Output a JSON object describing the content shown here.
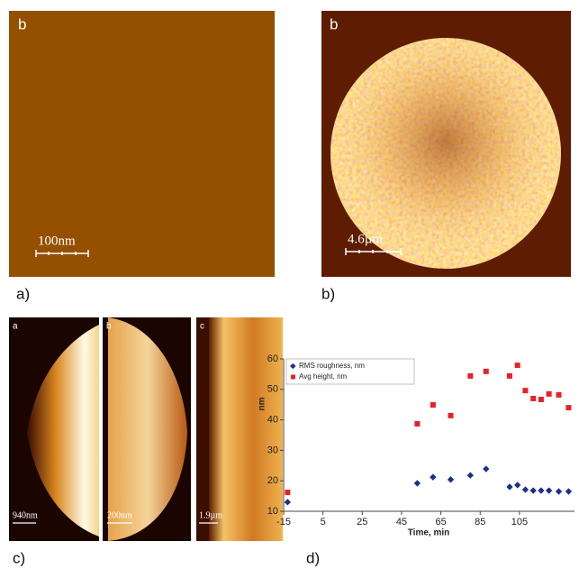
{
  "panels": [
    {
      "label": "a)",
      "inset_letter": "b",
      "scale_bar": "100nm"
    },
    {
      "label": "b)",
      "inset_letter": "b",
      "scale_bar": "4.6µm"
    },
    {
      "label": "c)",
      "subpanels": [
        {
          "letter": "a",
          "scale_bar": "940nm"
        },
        {
          "letter": "b",
          "scale_bar": "200nm"
        },
        {
          "letter": "c",
          "scale_bar": "1.9µm"
        }
      ]
    }
  ],
  "chart_data": {
    "type": "scatter",
    "panel_label": "d)",
    "x_label": "Time, min",
    "y_label": "nm",
    "x": [
      -13,
      53,
      61,
      70,
      80,
      88,
      100,
      104,
      108,
      112,
      116,
      120,
      125,
      130
    ],
    "series": [
      {
        "name": "RMS roughness, nm",
        "color": "#1f2e8c",
        "marker": "diamond",
        "values": [
          13,
          19.2,
          21.2,
          20.4,
          21.8,
          23.9,
          18,
          18.6,
          17.1,
          16.8,
          16.8,
          16.8,
          16.5,
          16.5
        ]
      },
      {
        "name": "Avg height, nm",
        "color": "#e8202a",
        "marker": "square",
        "values": [
          16.2,
          38.7,
          44.9,
          41.4,
          54.4,
          55.9,
          54.4,
          57.9,
          49.6,
          47,
          46.7,
          48.5,
          48.2,
          44
        ]
      }
    ],
    "xlim": [
      -15,
      133
    ],
    "ylim": [
      10,
      60
    ],
    "xticks": [
      -15,
      5,
      25,
      45,
      65,
      85,
      105
    ],
    "yticks": [
      10,
      20,
      30,
      40,
      50,
      60
    ],
    "grid": false
  }
}
